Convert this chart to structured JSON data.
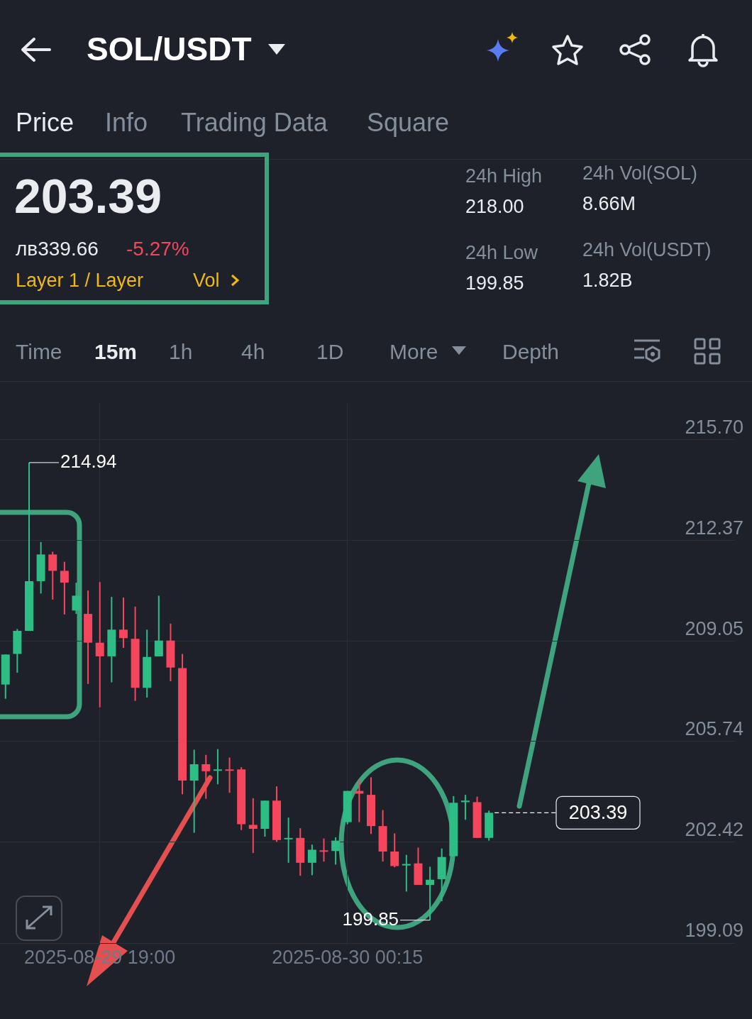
{
  "chart_data": {
    "type": "candlestick",
    "title": "SOL/USDT",
    "annotations": [
      "Price",
      "Info",
      "Trading Data",
      "Square",
      "203.39",
      "лв339.66",
      "-5.27%",
      "Layer 1 / Layer",
      "Vol",
      "24h High",
      "218.00",
      "24h Low",
      "199.85",
      "24h Vol(SOL)",
      "8.66M",
      "24h Vol(USDT)",
      "1.82B",
      "Time",
      "15m",
      "1h",
      "4h",
      "1D",
      "More",
      "Depth",
      {
        "text": "214.94",
        "x": "2025-08-29T17:30",
        "y": 214.94
      },
      {
        "text": "199.85",
        "x": "2025-08-30T02:00",
        "y": 199.85
      }
    ],
    "x": [
      "2025-08-29T17:00",
      "2025-08-29T17:15",
      "2025-08-29T17:30",
      "2025-08-29T17:45",
      "2025-08-29T18:00",
      "2025-08-29T18:15",
      "2025-08-29T18:30",
      "2025-08-29T18:45",
      "2025-08-29T19:00",
      "2025-08-29T19:15",
      "2025-08-29T19:30",
      "2025-08-29T19:45",
      "2025-08-29T20:00",
      "2025-08-29T20:15",
      "2025-08-29T20:30",
      "2025-08-29T20:45",
      "2025-08-29T21:00",
      "2025-08-29T21:15",
      "2025-08-29T21:30",
      "2025-08-29T21:45",
      "2025-08-29T22:00",
      "2025-08-29T22:15",
      "2025-08-29T22:30",
      "2025-08-29T22:45",
      "2025-08-29T23:00",
      "2025-08-29T23:15",
      "2025-08-29T23:30",
      "2025-08-29T23:45",
      "2025-08-30T00:00",
      "2025-08-30T00:15",
      "2025-08-30T00:30",
      "2025-08-30T00:45",
      "2025-08-30T01:00",
      "2025-08-30T01:15",
      "2025-08-30T01:30",
      "2025-08-30T01:45",
      "2025-08-30T02:00",
      "2025-08-30T02:15",
      "2025-08-30T02:30",
      "2025-08-30T02:45",
      "2025-08-30T03:00",
      "2025-08-30T03:15"
    ],
    "ohlc": [
      [
        207.62,
        208.61,
        207.15,
        208.61
      ],
      [
        208.63,
        209.45,
        208.01,
        209.39
      ],
      [
        209.39,
        214.94,
        209.39,
        211.03
      ],
      [
        211.03,
        212.32,
        210.62,
        211.91
      ],
      [
        211.91,
        212.0,
        210.42,
        211.37
      ],
      [
        211.37,
        211.67,
        209.93,
        210.98
      ],
      [
        210.06,
        210.98,
        209.95,
        210.55
      ],
      [
        209.95,
        210.72,
        207.64,
        209.0
      ],
      [
        209.0,
        211.0,
        206.87,
        208.55
      ],
      [
        208.55,
        210.51,
        207.69,
        209.43
      ],
      [
        209.43,
        210.49,
        208.83,
        209.15
      ],
      [
        209.13,
        210.19,
        207.08,
        207.51
      ],
      [
        207.51,
        209.43,
        207.19,
        208.53
      ],
      [
        208.55,
        210.55,
        208.55,
        209.07
      ],
      [
        209.07,
        209.63,
        207.73,
        208.18
      ],
      [
        208.16,
        208.63,
        204.0,
        204.45
      ],
      [
        204.45,
        205.47,
        202.73,
        204.99
      ],
      [
        204.99,
        205.3,
        203.85,
        204.76
      ],
      [
        204.78,
        205.49,
        204.33,
        204.82
      ],
      [
        204.82,
        205.21,
        204.05,
        204.78
      ],
      [
        204.82,
        204.89,
        202.82,
        203.01
      ],
      [
        202.99,
        203.87,
        202.06,
        202.86
      ],
      [
        202.86,
        203.79,
        202.6,
        203.79
      ],
      [
        203.79,
        204.26,
        202.43,
        202.49
      ],
      [
        202.52,
        203.23,
        201.74,
        202.56
      ],
      [
        202.56,
        202.88,
        201.31,
        201.74
      ],
      [
        201.74,
        202.34,
        201.33,
        202.17
      ],
      [
        202.15,
        202.54,
        201.78,
        202.11
      ],
      [
        202.13,
        202.58,
        201.68,
        202.47
      ],
      [
        203.08,
        204.11,
        203.01,
        204.11
      ],
      [
        204.11,
        204.45,
        203.08,
        204.02
      ],
      [
        203.98,
        204.56,
        202.69,
        202.95
      ],
      [
        202.95,
        203.48,
        201.78,
        202.11
      ],
      [
        202.11,
        202.71,
        201.59,
        201.63
      ],
      [
        201.65,
        202.0,
        200.79,
        201.7
      ],
      [
        201.72,
        202.24,
        201.01,
        201.01
      ],
      [
        201.01,
        201.61,
        199.85,
        201.18
      ],
      [
        201.2,
        202.21,
        200.47,
        201.93
      ],
      [
        201.96,
        203.94,
        201.96,
        203.72
      ],
      [
        203.74,
        203.98,
        203.16,
        203.79
      ],
      [
        203.74,
        203.92,
        202.56,
        202.56
      ],
      [
        202.56,
        203.46,
        202.47,
        203.39
      ]
    ],
    "colors": [
      "#2ebd85",
      "#2ebd85",
      "#2ebd85",
      "#2ebd85",
      "#f6465d",
      "#f6465d",
      "#2ebd85",
      "#f6465d",
      "#f6465d",
      "#2ebd85",
      "#f6465d",
      "#f6465d",
      "#2ebd85",
      "#2ebd85",
      "#f6465d",
      "#f6465d",
      "#2ebd85",
      "#f6465d",
      "#2ebd85",
      "#f6465d",
      "#f6465d",
      "#f6465d",
      "#2ebd85",
      "#f6465d",
      "#2ebd85",
      "#f6465d",
      "#2ebd85",
      "#f6465d",
      "#2ebd85",
      "#2ebd85",
      "#f6465d",
      "#f6465d",
      "#f6465d",
      "#f6465d",
      "#2ebd85",
      "#f6465d",
      "#2ebd85",
      "#2ebd85",
      "#2ebd85",
      "#2ebd85",
      "#f6465d",
      "#2ebd85"
    ],
    "xlim": [
      "2025-08-29T16:53",
      "2025-08-30T08:28"
    ],
    "xticks": [
      {
        "value": "2025-08-29T19:00",
        "label": "2025-08-29 19:00"
      },
      {
        "value": "2025-08-30T00:15",
        "label": "2025-08-30 00:15"
      }
    ],
    "ylim": [
      199.03,
      216.9
    ],
    "yticks": [
      199.09,
      202.42,
      205.74,
      209.05,
      212.37,
      {
        "value": 215.7,
        "label": "215.70"
      }
    ],
    "grid": true,
    "ref_lines": [
      {
        "axis": "y",
        "value": 203.39,
        "label": "203.39",
        "line_style": "dashed",
        "color": "#ffffff"
      }
    ]
  }
}
